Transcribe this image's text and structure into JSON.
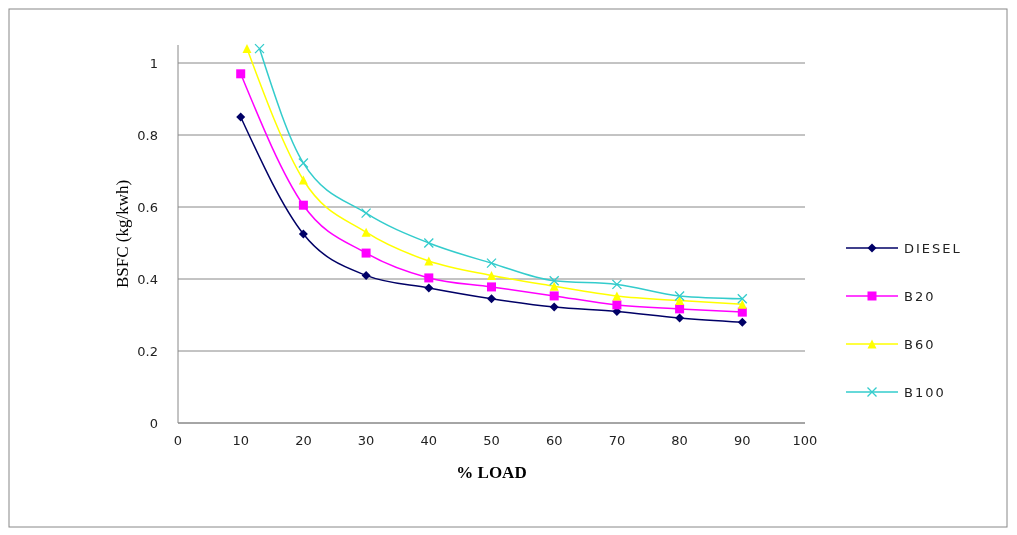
{
  "chart_data": {
    "type": "line",
    "xlabel": "% LOAD",
    "ylabel": "BSFC (kg/kwh)",
    "xlim": [
      0,
      100
    ],
    "xticks": [
      0,
      10,
      20,
      30,
      40,
      50,
      60,
      70,
      80,
      90,
      100
    ],
    "ylim": [
      0,
      1.05
    ],
    "yticks": [
      0,
      0.2,
      0.4,
      0.6,
      0.8,
      1
    ],
    "grid": "y",
    "legend": "right",
    "series": [
      {
        "name": "DIESEL",
        "color": "#000066",
        "marker": "diamond",
        "x": [
          10,
          20,
          30,
          40,
          50,
          60,
          70,
          80,
          90
        ],
        "values": [
          0.85,
          0.525,
          0.41,
          0.375,
          0.345,
          0.322,
          0.31,
          0.292,
          0.28
        ]
      },
      {
        "name": "B20",
        "color": "#ff00ff",
        "marker": "square",
        "x": [
          10,
          20,
          30,
          40,
          50,
          60,
          70,
          80,
          90
        ],
        "values": [
          0.97,
          0.605,
          0.472,
          0.403,
          0.378,
          0.353,
          0.328,
          0.317,
          0.308
        ]
      },
      {
        "name": "B60",
        "color": "#ffff00",
        "marker": "triangle",
        "x": [
          11,
          20,
          30,
          40,
          50,
          60,
          70,
          80,
          90
        ],
        "values": [
          1.04,
          0.675,
          0.53,
          0.45,
          0.41,
          0.38,
          0.353,
          0.34,
          0.33
        ]
      },
      {
        "name": "B100",
        "color": "#33cccc",
        "marker": "cross",
        "x": [
          13,
          20,
          30,
          40,
          50,
          60,
          70,
          80,
          90
        ],
        "values": [
          1.04,
          0.722,
          0.583,
          0.5,
          0.444,
          0.395,
          0.385,
          0.353,
          0.345
        ]
      }
    ]
  }
}
